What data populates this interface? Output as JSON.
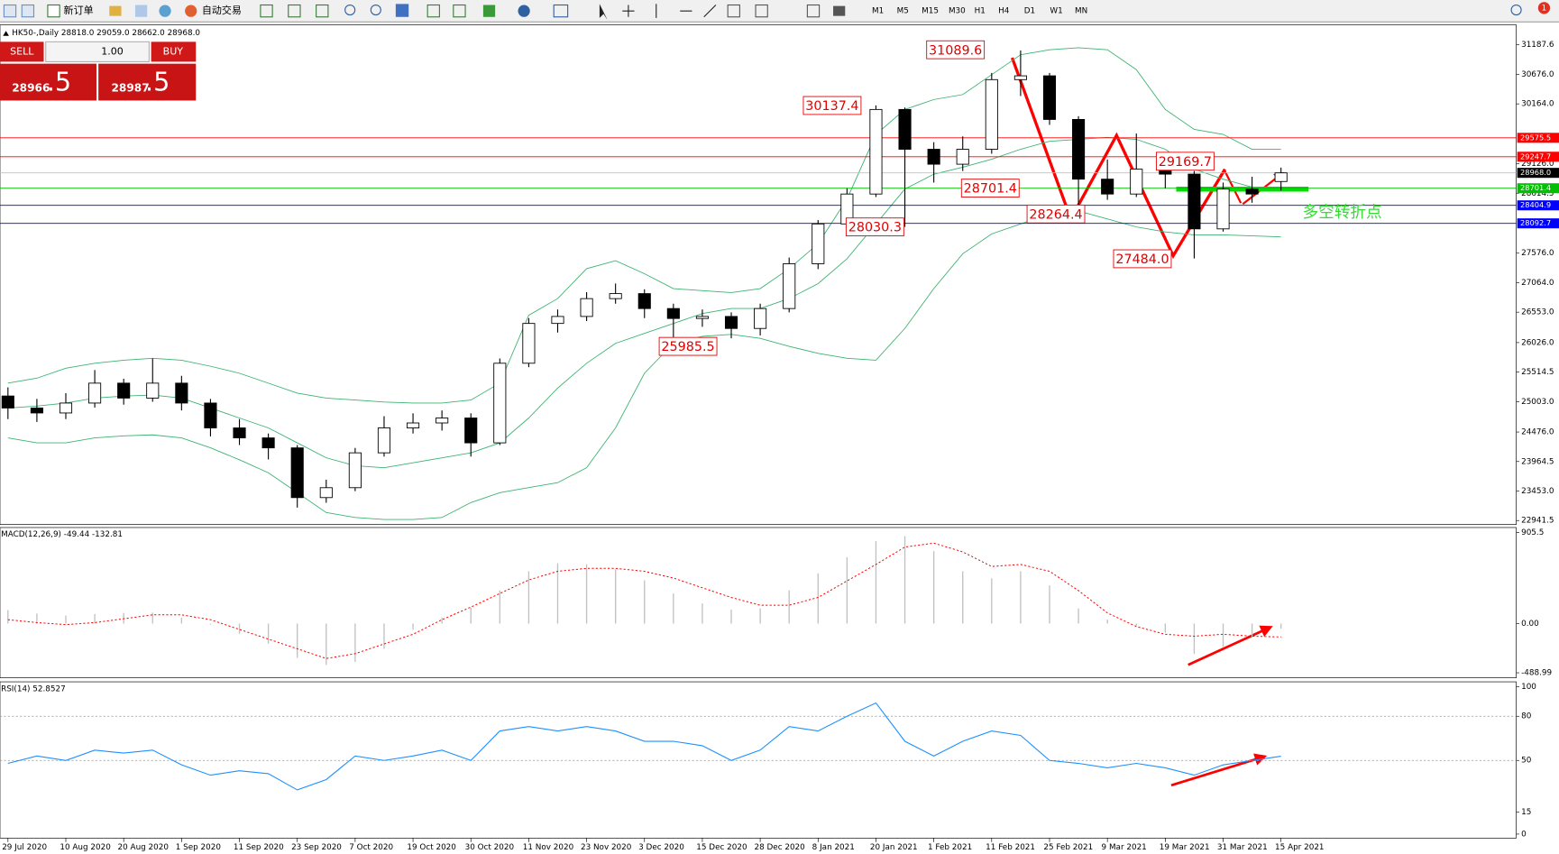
{
  "toolbar": {
    "new_order": "新订单",
    "auto_trading": "自动交易",
    "timeframes": [
      "M1",
      "M5",
      "M15",
      "M30",
      "H1",
      "H4",
      "D1",
      "W1",
      "MN"
    ],
    "badge": "1"
  },
  "trade_panel": {
    "sell": "SELL",
    "buy": "BUY",
    "lots": "1.00",
    "bid": "28966",
    "bid_big": ".5",
    "ask": "28987",
    "ask_big": ".5"
  },
  "chart_data": [
    {
      "type": "candlestick",
      "title": "HK50-,Daily  28818.0 29059.0 28662.0 28968.0",
      "categories": [
        "29 Jul 2020",
        null,
        "10 Aug 2020",
        null,
        "20 Aug 2020",
        null,
        "1 Sep 2020",
        null,
        "11 Sep 2020",
        null,
        "23 Sep 2020",
        null,
        "7 Oct 2020",
        null,
        "19 Oct 2020",
        null,
        "30 Oct 2020",
        null,
        "11 Nov 2020",
        null,
        "23 Nov 2020",
        null,
        "3 Dec 2020",
        null,
        "15 Dec 2020",
        null,
        "28 Dec 2020",
        null,
        "8 Jan 2021",
        null,
        "20 Jan 2021",
        null,
        "1 Feb 2021",
        null,
        "11 Feb 2021",
        null,
        "25 Feb 2021",
        null,
        "9 Mar 2021",
        null,
        "19 Mar 2021",
        null,
        "31 Mar 2021",
        null,
        "15 Apr 2021"
      ],
      "open": [
        25100,
        24892,
        24806,
        24978,
        25323,
        25064,
        25323,
        24978,
        24547,
        24374,
        24201,
        23339,
        23511,
        24115,
        24547,
        24633,
        24719,
        24288,
        25668,
        26358,
        26479,
        26788,
        26875,
        26616,
        26444,
        26479,
        26271,
        26616,
        27393,
        28083,
        28601,
        30067,
        29377,
        29118,
        29377,
        30584,
        30650,
        29894,
        28859,
        28601,
        29032,
        28946,
        27997,
        28687,
        28818
      ],
      "high": [
        25250,
        25050,
        25150,
        25550,
        25400,
        25750,
        25450,
        25050,
        24700,
        24450,
        24250,
        23650,
        24200,
        24750,
        24800,
        24850,
        24800,
        25750,
        26450,
        26600,
        26900,
        27050,
        26950,
        26700,
        26600,
        26550,
        26700,
        27500,
        28150,
        28700,
        30137.4,
        30100,
        29500,
        29600,
        30700,
        31089.6,
        30700,
        29950,
        29200,
        29650,
        29169.7,
        29000,
        28800,
        28900,
        29059
      ],
      "low": [
        24700,
        24650,
        24700,
        24900,
        24950,
        25000,
        24850,
        24400,
        24250,
        24000,
        23166,
        23250,
        23450,
        24050,
        24450,
        24500,
        24050,
        24250,
        25600,
        26200,
        26400,
        26700,
        26450,
        25985.5,
        26300,
        26100,
        26150,
        26550,
        27300,
        28000,
        28550,
        28030.3,
        28800,
        29000,
        29300,
        30300,
        29800,
        28264.4,
        28500,
        28550,
        28700,
        27484,
        27950,
        28450,
        28662
      ],
      "close": [
        24892,
        24806,
        24978,
        25323,
        25064,
        25323,
        24978,
        24547,
        24374,
        24201,
        23339,
        23511,
        24115,
        24547,
        24633,
        24719,
        24288,
        25668,
        26358,
        26479,
        26788,
        26875,
        26616,
        26444,
        26479,
        26271,
        26616,
        27393,
        28083,
        28601,
        30067,
        29377,
        29118,
        29377,
        30584,
        30650,
        29894,
        28859,
        28601,
        29032,
        28946,
        27997,
        28687,
        28601,
        28968
      ],
      "up_color": "#ffffff",
      "down_color": "#000000",
      "bands": {
        "color": "#3cb371",
        "upper": [
          25323,
          25409,
          25582,
          25668,
          25720,
          25754,
          25720,
          25616,
          25495,
          25323,
          25150,
          25064,
          25030,
          24995,
          24978,
          24978,
          25030,
          25323,
          26500,
          26789,
          27307,
          27445,
          27220,
          26962,
          26927,
          26893,
          26962,
          27307,
          27738,
          28514,
          29635,
          30067,
          30239,
          30325,
          30670,
          31015,
          31102,
          31136,
          31102,
          30757,
          30067,
          29722,
          29635,
          29377,
          29377
        ],
        "middle": [
          24892,
          24926,
          24978,
          25064,
          25099,
          25116,
          25064,
          24892,
          24719,
          24547,
          24288,
          24029,
          23891,
          23857,
          23943,
          24029,
          24115,
          24288,
          24719,
          25237,
          25668,
          26013,
          26185,
          26358,
          26530,
          26617,
          26617,
          26789,
          27048,
          27479,
          28083,
          28687,
          28945,
          29066,
          29204,
          29377,
          29515,
          29549,
          29584,
          29549,
          29377,
          29032,
          28859,
          28721,
          28687
        ],
        "lower": [
          24374,
          24288,
          24288,
          24374,
          24409,
          24426,
          24374,
          24202,
          23995,
          23770,
          23425,
          23080,
          22994,
          22960,
          22960,
          22994,
          23253,
          23425,
          23512,
          23598,
          23857,
          24547,
          25495,
          26013,
          26134,
          26168,
          26099,
          25961,
          25840,
          25754,
          25720,
          26272,
          26962,
          27565,
          27910,
          28083,
          28255,
          28307,
          28169,
          28031,
          27945,
          27893,
          27893,
          27876,
          27859
        ]
      },
      "ylim": [
        22872,
        31533
      ],
      "yticks": [
        31187.6,
        {
          "value": 30676,
          "label": "30676.0"
        },
        {
          "value": 30164,
          "label": "30164.0"
        },
        {
          "value": 29126,
          "label": "29126.0"
        },
        28614.5,
        {
          "value": 27576,
          "label": "27576.0"
        },
        {
          "value": 27064,
          "label": "27064.0"
        },
        {
          "value": 26553,
          "label": "26553.0"
        },
        {
          "value": 26026,
          "label": "26026.0"
        },
        25514.5,
        {
          "value": 25003,
          "label": "25003.0"
        },
        {
          "value": 24476,
          "label": "24476.0"
        },
        23964.5,
        {
          "value": 23453,
          "label": "23453.0"
        },
        22941.5
      ],
      "levels": [
        {
          "value": 29575.5,
          "color": "#ff0000"
        },
        {
          "value": 29247.7,
          "color": "#ff0000"
        },
        {
          "value": 28968,
          "label": "28968.0",
          "color": "#c0c0c0",
          "label_color": "#000000"
        },
        {
          "value": 28701.4,
          "color": "#00c000"
        },
        {
          "value": 28404.9,
          "color": "#0000ff"
        },
        {
          "value": 28092.7,
          "color": "#0000ff"
        }
      ],
      "annotations": [
        "31089.6",
        "30137.4",
        "28701.4",
        "28030.3",
        "25985.5",
        "28264.4",
        "29169.7",
        "27484.0"
      ],
      "note": "多空转折点"
    },
    {
      "type": "macd",
      "title": "MACD(12,26,9) -49.44 -132.81",
      "series": [
        {
          "color": "#c0c0c0",
          "values": [
            135,
            100,
            80,
            95,
            105,
            110,
            60,
            -10,
            -100,
            -200,
            -340,
            -410,
            -380,
            -250,
            -60,
            60,
            160,
            330,
            520,
            600,
            590,
            540,
            430,
            300,
            200,
            140,
            150,
            330,
            500,
            660,
            820,
            870,
            720,
            520,
            450,
            520,
            380,
            150,
            40,
            -20,
            -90,
            -300,
            -230,
            -140,
            -49.44
          ]
        },
        {
          "color": "#ff0000",
          "values": [
            39,
            10,
            -10,
            10,
            48,
            87,
            87,
            39,
            -58,
            -154,
            -250,
            -347,
            -299,
            -202,
            -106,
            39,
            164,
            299,
            434,
            520,
            549,
            549,
            520,
            453,
            356,
            260,
            183,
            183,
            260,
            424,
            588,
            761,
            800,
            713,
            568,
            588,
            520,
            328,
            106,
            -29,
            -106,
            -125,
            -106,
            -125,
            -132.81
          ]
        }
      ],
      "ylim": [
        -539,
        955
      ],
      "yticks": [
        905.5,
        {
          "value": 0,
          "label": "0.00"
        },
        -488.99
      ]
    },
    {
      "type": "line",
      "title": "RSI(14) 52.8527",
      "color": "#1e90ff",
      "values": [
        48,
        53,
        50,
        57,
        55,
        57,
        47,
        40,
        43,
        41,
        30,
        37,
        53,
        50,
        53,
        57,
        50,
        70,
        73,
        70,
        73,
        70,
        63,
        63,
        60,
        50,
        57,
        73,
        70,
        80,
        89,
        63,
        53,
        63,
        70,
        67,
        50,
        48,
        45,
        48,
        45,
        40,
        47,
        50,
        52.8527
      ],
      "ylim": [
        0,
        100
      ],
      "yticks": [
        100,
        80,
        50,
        15,
        0
      ],
      "dashed_levels": [
        80,
        50
      ]
    }
  ]
}
